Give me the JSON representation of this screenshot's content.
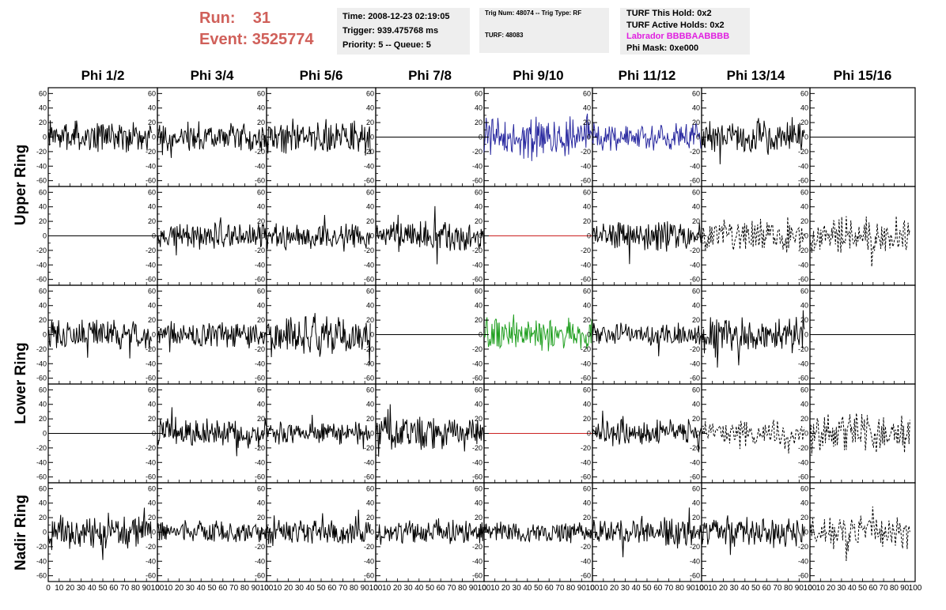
{
  "header": {
    "run_label": "Run:",
    "run_value": "31",
    "event_label": "Event:",
    "event_value": "3525774",
    "time_line": "Time: 2008-12-23 02:19:05",
    "trigger_line": "Trigger: 939.475768 ms",
    "priority_line": "Priority: 5 -- Queue: 5",
    "trig_num_line": "Trig Num: 48074 -- Trig Type: RF",
    "turf_line": "TURF: 48083",
    "turf_this_hold": "TURF This Hold: 0x2",
    "turf_active_holds": "TURF Active Holds: 0x2",
    "labrador": "Labrador BBBBAABBBB",
    "phi_mask": "Phi Mask: 0xe000"
  },
  "columns": [
    "Phi 1/2",
    "Phi 3/4",
    "Phi 5/6",
    "Phi 7/8",
    "Phi 9/10",
    "Phi 11/12",
    "Phi 13/14",
    "Phi 15/16"
  ],
  "row_labels": {
    "upper": "Upper Ring",
    "lower": "Lower Ring",
    "nadir": "Nadir Ring"
  },
  "axis": {
    "y_ticks": [
      -60,
      -40,
      -20,
      0,
      20,
      40,
      60
    ],
    "y_tick_labels": [
      "-60",
      "-40",
      "-20",
      "0",
      "20",
      "40",
      "60"
    ],
    "x_ticks": [
      0,
      10,
      20,
      30,
      40,
      50,
      60,
      70,
      80,
      90,
      100
    ],
    "x_tick_labels": [
      "0",
      "10",
      "20",
      "30",
      "40",
      "50",
      "60",
      "70",
      "80",
      "90",
      "100"
    ],
    "ylim": [
      -68,
      68
    ],
    "xlim": [
      0,
      100
    ]
  },
  "colors": {
    "default_trace": "#000000",
    "highlight_upper": "#2a2aa0",
    "highlight_lower": "#22a022",
    "zero_line_red": "#cc2222",
    "run_text": "#d0605a",
    "labrador_text": "#e020e0",
    "info_box_bg": "#eeeeee"
  },
  "chart_data": {
    "type": "line",
    "rows": 5,
    "cols": 8,
    "panels": [
      {
        "row": 0,
        "col": 0,
        "style": "solid",
        "color": "#000000",
        "amp": 16
      },
      {
        "row": 0,
        "col": 1,
        "style": "solid",
        "color": "#000000",
        "amp": 15
      },
      {
        "row": 0,
        "col": 2,
        "style": "solid",
        "color": "#000000",
        "amp": 18
      },
      {
        "row": 0,
        "col": 3,
        "style": "flat",
        "color": "#000000",
        "amp": 0
      },
      {
        "row": 0,
        "col": 4,
        "style": "solid",
        "color": "#2a2aa0",
        "amp": 24
      },
      {
        "row": 0,
        "col": 5,
        "style": "solid",
        "color": "#2a2aa0",
        "amp": 14
      },
      {
        "row": 0,
        "col": 6,
        "style": "solid",
        "color": "#000000",
        "amp": 18
      },
      {
        "row": 0,
        "col": 7,
        "style": "flat",
        "color": "#000000",
        "amp": 0
      },
      {
        "row": 1,
        "col": 0,
        "style": "flat",
        "color": "#000000",
        "amp": 0
      },
      {
        "row": 1,
        "col": 1,
        "style": "solid",
        "color": "#000000",
        "amp": 15
      },
      {
        "row": 1,
        "col": 2,
        "style": "solid",
        "color": "#000000",
        "amp": 13
      },
      {
        "row": 1,
        "col": 3,
        "style": "solid",
        "color": "#000000",
        "amp": 16
      },
      {
        "row": 1,
        "col": 4,
        "style": "flat",
        "color": "#cc2222",
        "amp": 0
      },
      {
        "row": 1,
        "col": 5,
        "style": "solid",
        "color": "#000000",
        "amp": 16
      },
      {
        "row": 1,
        "col": 6,
        "style": "dashed",
        "color": "#000000",
        "amp": 18
      },
      {
        "row": 1,
        "col": 7,
        "style": "dashed",
        "color": "#000000",
        "amp": 20
      },
      {
        "row": 2,
        "col": 0,
        "style": "solid",
        "color": "#000000",
        "amp": 16
      },
      {
        "row": 2,
        "col": 1,
        "style": "solid",
        "color": "#000000",
        "amp": 13
      },
      {
        "row": 2,
        "col": 2,
        "style": "solid",
        "color": "#000000",
        "amp": 20
      },
      {
        "row": 2,
        "col": 3,
        "style": "flat",
        "color": "#000000",
        "amp": 0
      },
      {
        "row": 2,
        "col": 4,
        "style": "solid",
        "color": "#22a022",
        "amp": 17
      },
      {
        "row": 2,
        "col": 5,
        "style": "solid",
        "color": "#000000",
        "amp": 12
      },
      {
        "row": 2,
        "col": 6,
        "style": "solid",
        "color": "#000000",
        "amp": 18
      },
      {
        "row": 2,
        "col": 7,
        "style": "flat",
        "color": "#000000",
        "amp": 0
      },
      {
        "row": 3,
        "col": 0,
        "style": "flat",
        "color": "#000000",
        "amp": 0
      },
      {
        "row": 3,
        "col": 1,
        "style": "solid",
        "color": "#000000",
        "amp": 16
      },
      {
        "row": 3,
        "col": 2,
        "style": "solid",
        "color": "#000000",
        "amp": 12
      },
      {
        "row": 3,
        "col": 3,
        "style": "solid",
        "color": "#000000",
        "amp": 18
      },
      {
        "row": 3,
        "col": 4,
        "style": "flat",
        "color": "#cc2222",
        "amp": 0
      },
      {
        "row": 3,
        "col": 5,
        "style": "solid",
        "color": "#000000",
        "amp": 14
      },
      {
        "row": 3,
        "col": 6,
        "style": "dashed",
        "color": "#000000",
        "amp": 14
      },
      {
        "row": 3,
        "col": 7,
        "style": "dashed",
        "color": "#000000",
        "amp": 22
      },
      {
        "row": 4,
        "col": 0,
        "style": "solid",
        "color": "#000000",
        "amp": 17
      },
      {
        "row": 4,
        "col": 1,
        "style": "solid",
        "color": "#000000",
        "amp": 12
      },
      {
        "row": 4,
        "col": 2,
        "style": "solid",
        "color": "#000000",
        "amp": 13
      },
      {
        "row": 4,
        "col": 3,
        "style": "solid",
        "color": "#000000",
        "amp": 12
      },
      {
        "row": 4,
        "col": 4,
        "style": "solid",
        "color": "#000000",
        "amp": 11
      },
      {
        "row": 4,
        "col": 5,
        "style": "solid",
        "color": "#000000",
        "amp": 14
      },
      {
        "row": 4,
        "col": 6,
        "style": "solid",
        "color": "#000000",
        "amp": 16
      },
      {
        "row": 4,
        "col": 7,
        "style": "dashed",
        "color": "#000000",
        "amp": 18
      }
    ]
  }
}
